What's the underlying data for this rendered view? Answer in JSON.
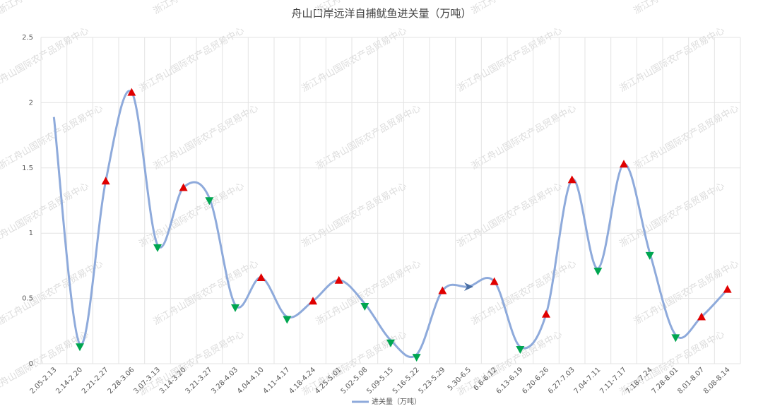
{
  "chart_data": {
    "type": "line",
    "title": "舟山口岸远洋自捕鱿鱼进关量（万吨）",
    "xlabel": "",
    "ylabel": "",
    "ylim": [
      0,
      2.5
    ],
    "yticks": [
      0,
      0.5,
      1,
      1.5,
      2,
      2.5
    ],
    "ytick_labels": [
      "0",
      "0.5",
      "1",
      "1.5",
      "2",
      "2.5"
    ],
    "grid": true,
    "legend_position": "bottom",
    "line_color": "#8eaadb",
    "up_marker_color": "#e00000",
    "down_marker_color": "#00a650",
    "categories": [
      "2.05-2.13",
      "2.14-2.20",
      "2.21-2.27",
      "2.28-3.06",
      "3.07-3.13",
      "3.14-3.20",
      "3.21-3.27",
      "3.28-4.03",
      "4.04-4.10",
      "4.11-4.17",
      "4.18-4.24",
      "4.25-5.01",
      "5.02-5.08",
      "5.09-5.15",
      "5.16-5.22",
      "5.23-5.29",
      "5.30-6.5",
      "6.6-6.12",
      "6.13-6.19",
      "6.20-6.26",
      "6.27-7.03",
      "7.04-7.11",
      "7.11-7.17",
      "7.18-7.24",
      "7.28-8.01",
      "8.01-8.07",
      "8.08-8.14"
    ],
    "series": [
      {
        "name": "进关量（万吨）",
        "values": [
          1.89,
          0.15,
          1.4,
          2.08,
          0.91,
          1.35,
          1.27,
          0.45,
          0.66,
          0.36,
          0.48,
          0.64,
          0.46,
          0.18,
          0.07,
          0.56,
          0.59,
          0.63,
          0.13,
          0.38,
          1.41,
          0.73,
          1.53,
          0.85,
          0.22,
          0.36,
          0.57
        ],
        "markers": [
          "none",
          "down",
          "up",
          "up",
          "down",
          "up",
          "down",
          "down",
          "up",
          "down",
          "up",
          "up",
          "down",
          "down",
          "down",
          "up",
          "flat",
          "up",
          "down",
          "up",
          "up",
          "down",
          "up",
          "down",
          "down",
          "up",
          "up"
        ]
      }
    ]
  },
  "watermark": "浙江舟山国际农产品贸易中心"
}
